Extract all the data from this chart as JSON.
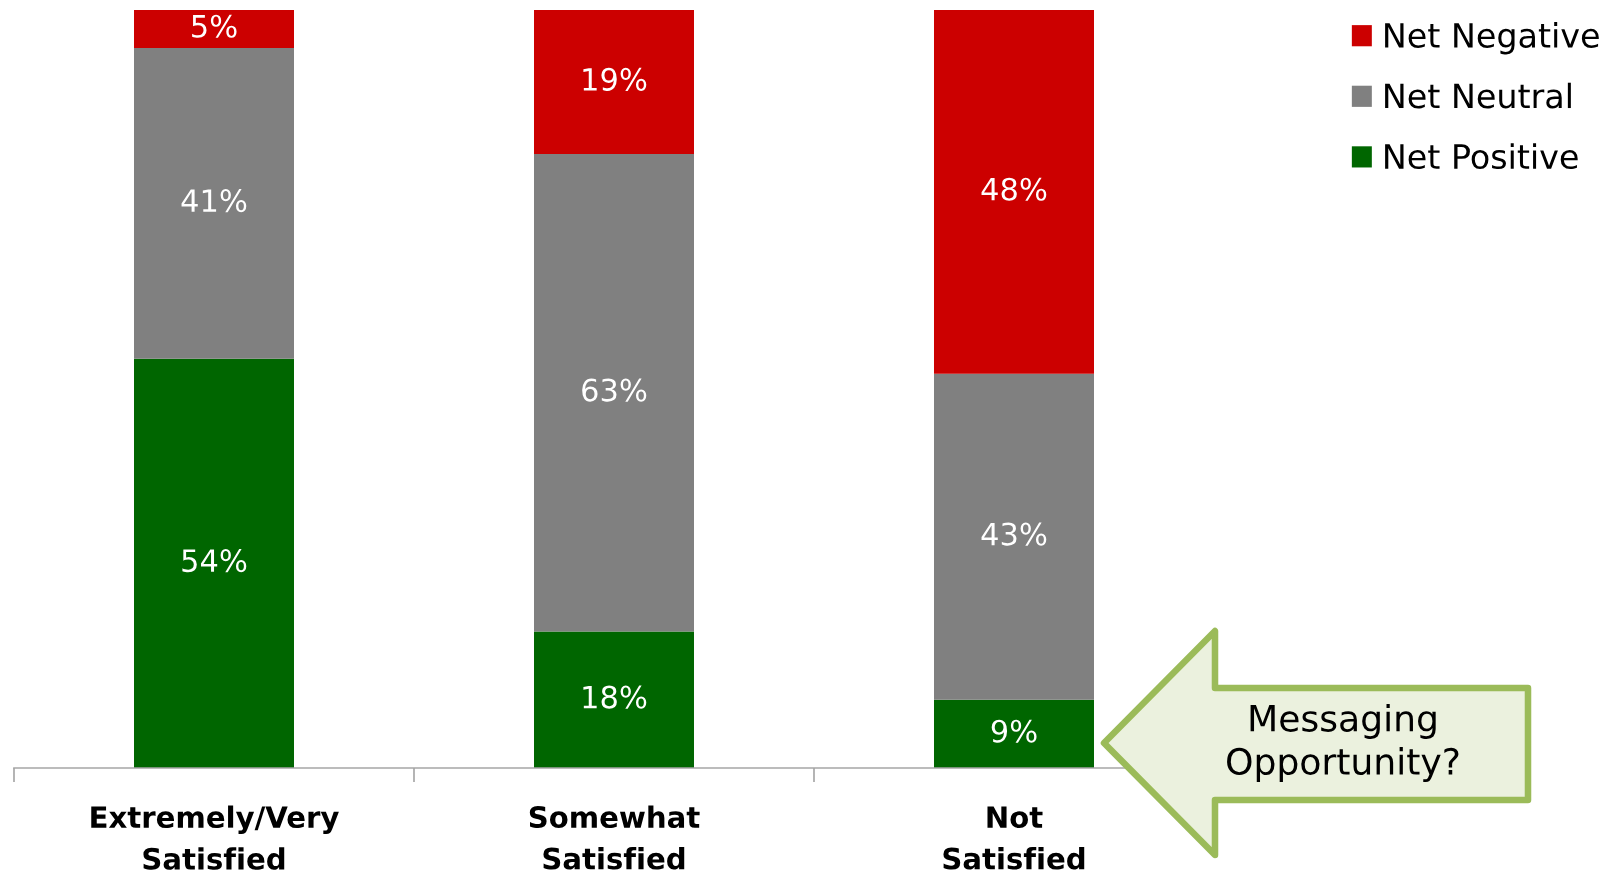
{
  "chart_data": {
    "type": "bar",
    "stacked": true,
    "categories": [
      "Extremely/Very\nSatisfied",
      "Somewhat\nSatisfied",
      "Not\nSatisfied"
    ],
    "series": [
      {
        "name": "Net Positive",
        "color": "#006600",
        "values": [
          54,
          18,
          9
        ],
        "value_labels": [
          "54%",
          "18%",
          "9%"
        ]
      },
      {
        "name": "Net Neutral",
        "color": "#808080",
        "values": [
          41,
          63,
          43
        ],
        "value_labels": [
          "41%",
          "63%",
          "43%"
        ]
      },
      {
        "name": "Net Negative",
        "color": "#cc0000",
        "values": [
          5,
          19,
          48
        ],
        "value_labels": [
          "5%",
          "19%",
          "48%"
        ]
      }
    ],
    "legend": "top right",
    "grid": false,
    "annotations": [
      "Messaging\nOpportunity?"
    ]
  }
}
